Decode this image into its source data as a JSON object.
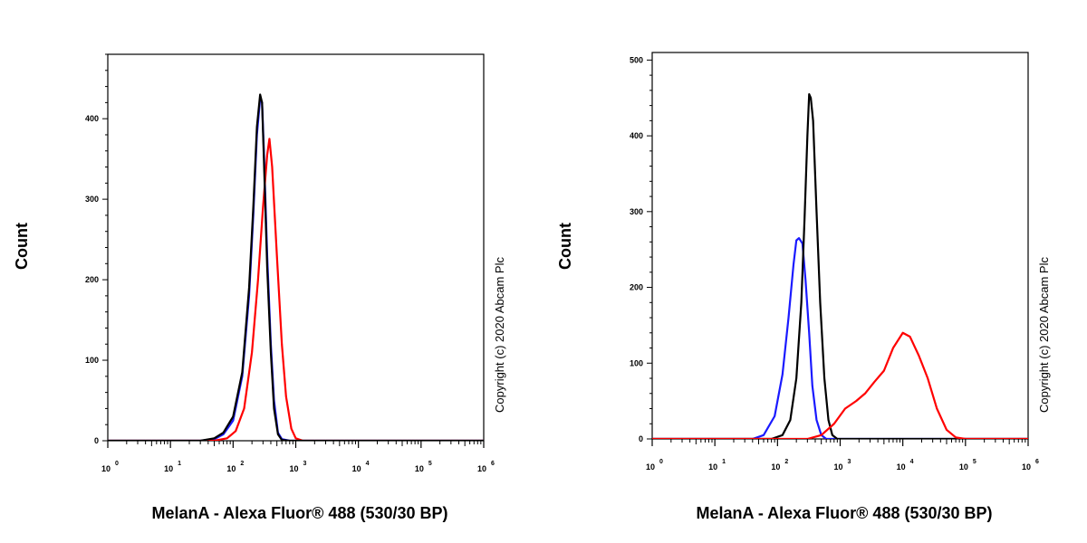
{
  "chart_data": [
    {
      "type": "line",
      "title": "",
      "xlabel": "MelanA - Alexa Fluor® 488 (530/30 BP)",
      "ylabel": "Count",
      "x_scale": "log",
      "xlim": [
        1,
        1000000
      ],
      "ylim": [
        0,
        480
      ],
      "yticks": [
        0,
        100,
        200,
        300,
        400
      ],
      "xtick_labels": [
        {
          "base": "10",
          "exp": "0"
        },
        {
          "base": "10",
          "exp": "1"
        },
        {
          "base": "10",
          "exp": "2"
        },
        {
          "base": "10",
          "exp": "3"
        },
        {
          "base": "10",
          "exp": "4"
        },
        {
          "base": "10",
          "exp": "5"
        },
        {
          "base": "10",
          "exp": "6"
        }
      ],
      "copyright": "Copyright (c) 2020 Abcam Plc",
      "series": [
        {
          "color": "#1a1aff",
          "points": [
            [
              1,
              0
            ],
            [
              30,
              0
            ],
            [
              50,
              2
            ],
            [
              70,
              8
            ],
            [
              100,
              25
            ],
            [
              140,
              80
            ],
            [
              180,
              180
            ],
            [
              210,
              280
            ],
            [
              240,
              380
            ],
            [
              270,
              425
            ],
            [
              290,
              420
            ],
            [
              310,
              360
            ],
            [
              350,
              230
            ],
            [
              400,
              120
            ],
            [
              450,
              50
            ],
            [
              520,
              10
            ],
            [
              600,
              2
            ],
            [
              800,
              0
            ],
            [
              1000000,
              0
            ]
          ]
        },
        {
          "color": "#ff0000",
          "points": [
            [
              1,
              0
            ],
            [
              50,
              0
            ],
            [
              80,
              3
            ],
            [
              110,
              12
            ],
            [
              150,
              40
            ],
            [
              200,
              110
            ],
            [
              250,
              200
            ],
            [
              300,
              290
            ],
            [
              350,
              355
            ],
            [
              380,
              375
            ],
            [
              420,
              340
            ],
            [
              500,
              230
            ],
            [
              600,
              120
            ],
            [
              700,
              55
            ],
            [
              850,
              15
            ],
            [
              1000,
              3
            ],
            [
              1300,
              0
            ],
            [
              1000000,
              0
            ]
          ]
        },
        {
          "color": "#000000",
          "points": [
            [
              1,
              0
            ],
            [
              30,
              0
            ],
            [
              50,
              3
            ],
            [
              70,
              10
            ],
            [
              100,
              30
            ],
            [
              140,
              85
            ],
            [
              180,
              190
            ],
            [
              210,
              290
            ],
            [
              240,
              390
            ],
            [
              270,
              430
            ],
            [
              290,
              420
            ],
            [
              310,
              350
            ],
            [
              350,
              215
            ],
            [
              400,
              110
            ],
            [
              450,
              40
            ],
            [
              520,
              8
            ],
            [
              600,
              1
            ],
            [
              800,
              0
            ],
            [
              1000000,
              0
            ]
          ]
        }
      ]
    },
    {
      "type": "line",
      "title": "",
      "xlabel": "MelanA - Alexa Fluor® 488 (530/30 BP)",
      "ylabel": "Count",
      "x_scale": "log",
      "xlim": [
        1,
        1000000
      ],
      "ylim": [
        0,
        510
      ],
      "yticks": [
        0,
        100,
        200,
        300,
        400,
        500
      ],
      "xtick_labels": [
        {
          "base": "10",
          "exp": "0"
        },
        {
          "base": "10",
          "exp": "1"
        },
        {
          "base": "10",
          "exp": "2"
        },
        {
          "base": "10",
          "exp": "3"
        },
        {
          "base": "10",
          "exp": "4"
        },
        {
          "base": "10",
          "exp": "5"
        },
        {
          "base": "10",
          "exp": "6"
        }
      ],
      "copyright": "Copyright (c) 2020 Abcam Plc",
      "series": [
        {
          "color": "#1a1aff",
          "points": [
            [
              1,
              0
            ],
            [
              40,
              0
            ],
            [
              60,
              5
            ],
            [
              90,
              30
            ],
            [
              120,
              85
            ],
            [
              150,
              160
            ],
            [
              180,
              230
            ],
            [
              200,
              262
            ],
            [
              220,
              265
            ],
            [
              250,
              258
            ],
            [
              280,
              210
            ],
            [
              320,
              140
            ],
            [
              360,
              70
            ],
            [
              420,
              25
            ],
            [
              500,
              5
            ],
            [
              600,
              0
            ],
            [
              1000000,
              0
            ]
          ]
        },
        {
          "color": "#000000",
          "points": [
            [
              1,
              0
            ],
            [
              80,
              0
            ],
            [
              120,
              5
            ],
            [
              160,
              25
            ],
            [
              200,
              80
            ],
            [
              240,
              180
            ],
            [
              270,
              290
            ],
            [
              300,
              400
            ],
            [
              320,
              455
            ],
            [
              340,
              450
            ],
            [
              370,
              420
            ],
            [
              420,
              300
            ],
            [
              480,
              180
            ],
            [
              560,
              80
            ],
            [
              650,
              25
            ],
            [
              750,
              5
            ],
            [
              900,
              0
            ],
            [
              1000000,
              0
            ]
          ]
        },
        {
          "color": "#ff0000",
          "points": [
            [
              1,
              0
            ],
            [
              300,
              0
            ],
            [
              500,
              5
            ],
            [
              800,
              20
            ],
            [
              1200,
              40
            ],
            [
              1800,
              50
            ],
            [
              2500,
              60
            ],
            [
              3500,
              75
            ],
            [
              5000,
              90
            ],
            [
              7000,
              120
            ],
            [
              10000,
              140
            ],
            [
              13000,
              135
            ],
            [
              18000,
              110
            ],
            [
              25000,
              80
            ],
            [
              35000,
              40
            ],
            [
              50000,
              12
            ],
            [
              70000,
              2
            ],
            [
              100000,
              0
            ],
            [
              1000000,
              0
            ]
          ]
        }
      ]
    }
  ]
}
